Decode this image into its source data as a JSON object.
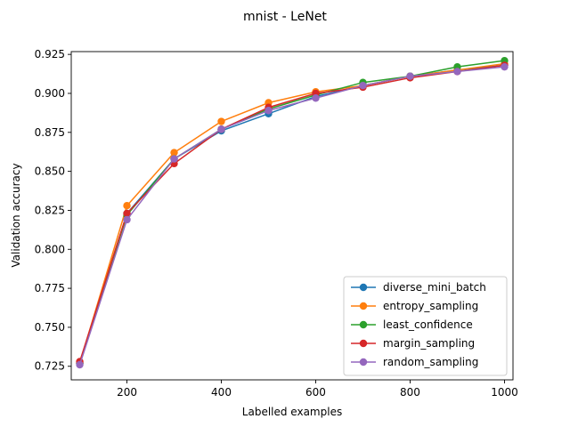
{
  "chart_data": {
    "type": "line",
    "title": "mnist - LeNet",
    "xlabel": "Labelled examples",
    "ylabel": "Validation accuracy",
    "xlim": [
      82,
      1018
    ],
    "ylim": [
      0.7163,
      0.9268
    ],
    "xticks": [
      200,
      400,
      600,
      800,
      1000
    ],
    "xtick_labels": [
      "200",
      "400",
      "600",
      "800",
      "1000"
    ],
    "yticks": [
      0.725,
      0.75,
      0.775,
      0.8,
      0.825,
      0.85,
      0.875,
      0.9,
      0.925
    ],
    "ytick_labels": [
      "0.725",
      "0.750",
      "0.775",
      "0.800",
      "0.825",
      "0.850",
      "0.875",
      "0.900",
      "0.925"
    ],
    "grid": false,
    "legend_position": "bottom-right",
    "x": [
      100,
      200,
      300,
      400,
      500,
      600,
      700,
      800,
      900,
      1000
    ],
    "series": [
      {
        "name": "diverse_mini_batch",
        "color": "#1f77b4",
        "values": [
          0.727,
          0.823,
          0.858,
          0.876,
          0.887,
          0.898,
          0.905,
          0.911,
          0.915,
          0.918
        ]
      },
      {
        "name": "entropy_sampling",
        "color": "#ff7f0e",
        "values": [
          0.727,
          0.828,
          0.862,
          0.882,
          0.894,
          0.901,
          0.905,
          0.911,
          0.915,
          0.919
        ]
      },
      {
        "name": "least_confidence",
        "color": "#2ca02c",
        "values": [
          0.727,
          0.822,
          0.858,
          0.877,
          0.89,
          0.899,
          0.907,
          0.911,
          0.917,
          0.921
        ]
      },
      {
        "name": "margin_sampling",
        "color": "#d62728",
        "values": [
          0.728,
          0.823,
          0.855,
          0.877,
          0.891,
          0.9,
          0.904,
          0.91,
          0.914,
          0.918
        ]
      },
      {
        "name": "random_sampling",
        "color": "#9467bd",
        "values": [
          0.726,
          0.819,
          0.858,
          0.877,
          0.889,
          0.897,
          0.905,
          0.911,
          0.914,
          0.917
        ]
      }
    ]
  }
}
